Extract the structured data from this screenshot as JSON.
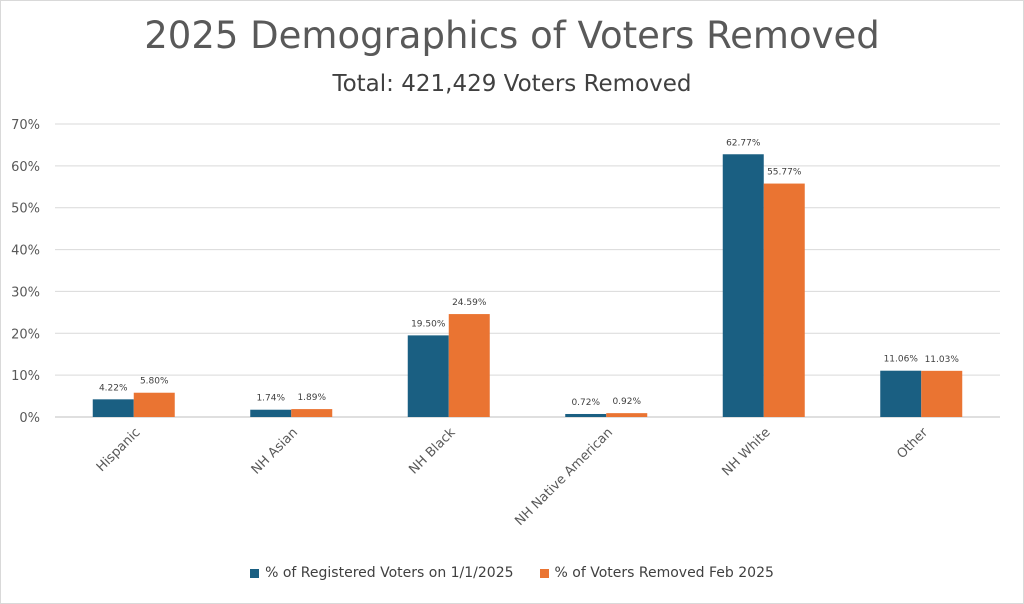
{
  "chart_data": {
    "type": "bar",
    "title": "2025 Demographics of Voters Removed",
    "subtitle": "Total: 421,429 Voters Removed",
    "categories": [
      "Hispanic",
      "NH Asian",
      "NH Black",
      "NH Native American",
      "NH White",
      "Other"
    ],
    "series": [
      {
        "name": "% of Registered Voters on 1/1/2025",
        "color": "#1a5f82",
        "values": [
          4.22,
          1.74,
          19.5,
          0.72,
          62.77,
          11.06
        ],
        "labels": [
          "4.22%",
          "1.74%",
          "19.50%",
          "0.72%",
          "62.77%",
          "11.06%"
        ]
      },
      {
        "name": "% of Voters Removed Feb 2025",
        "color": "#ea7432",
        "values": [
          5.8,
          1.89,
          24.59,
          0.92,
          55.77,
          11.03
        ],
        "labels": [
          "5.80%",
          "1.89%",
          "24.59%",
          "0.92%",
          "55.77%",
          "11.03%"
        ]
      }
    ],
    "ylim": [
      0,
      70
    ],
    "yticks": [
      "0%",
      "10%",
      "20%",
      "30%",
      "40%",
      "50%",
      "60%",
      "70%"
    ],
    "grid": true,
    "legend_position": "bottom",
    "xlabel": "",
    "ylabel": ""
  }
}
